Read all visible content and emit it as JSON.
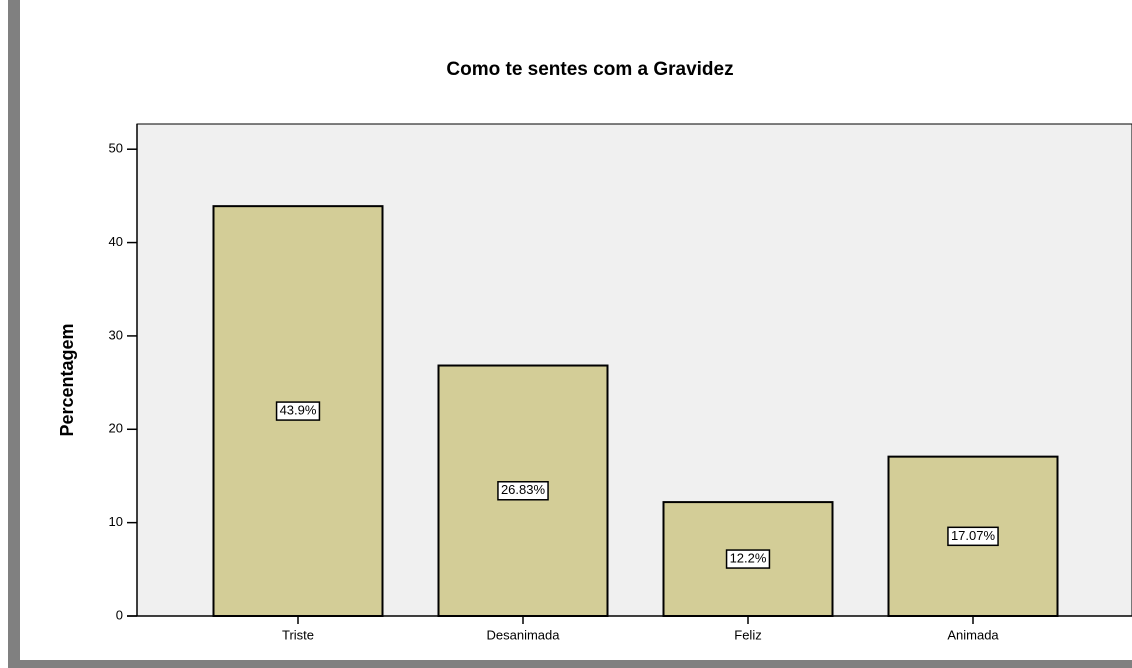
{
  "chart_data": {
    "type": "bar",
    "title": "Como te sentes com a Gravidez",
    "y_label": "Percentagem",
    "categories": [
      "Triste",
      "Desanimada",
      "Feliz",
      "Animada"
    ],
    "values": [
      43.9,
      26.83,
      12.2,
      17.07
    ],
    "value_labels": [
      "43.9%",
      "26.83%",
      "12.2%",
      "17.07%"
    ],
    "color": "#d3cd97",
    "ylim": [
      0,
      52.7
    ],
    "yticks": [
      0,
      10,
      20,
      30,
      40,
      50
    ]
  }
}
